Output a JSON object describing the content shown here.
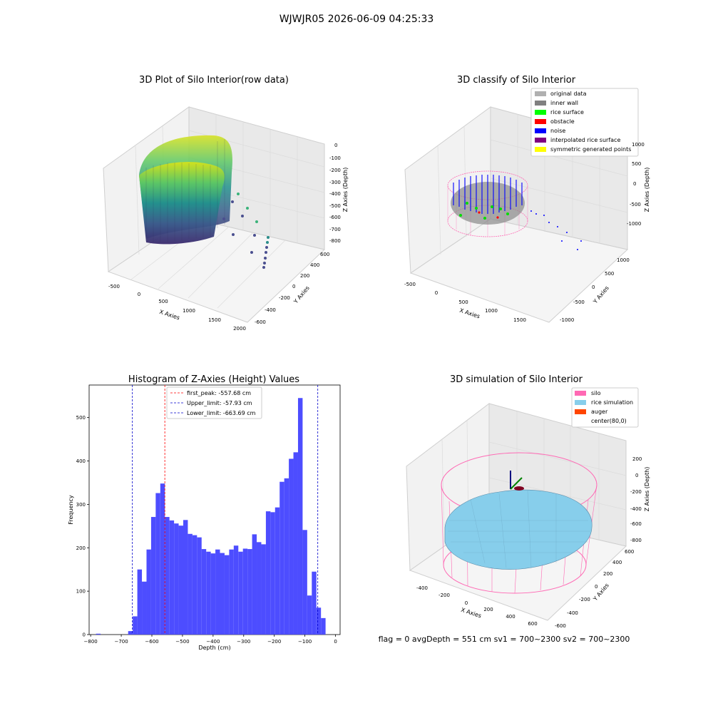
{
  "suptitle": "WJWJR05 2026-06-09 04:25:33",
  "footer": "flag = 0     avgDepth = 551 cm  sv1 = 700~2300  sv2 = 700~2300",
  "colors": {
    "hist_bar": "#4d4dff",
    "first_peak": "#ff0000",
    "limit": "#0000cc",
    "silo": "#ff69b4",
    "rice": "#87ceeb",
    "auger": "#ff4500",
    "pane": "#f0f0f0"
  },
  "chart_data": [
    {
      "type": "scatter3d",
      "title": "3D Plot of Silo Interior(row data)",
      "xlabel": "X Axies",
      "ylabel": "Y Axies",
      "zlabel": "Z Axies (Depth)",
      "xticks": [
        "-500",
        "0",
        "500",
        "1000",
        "1500",
        "2000"
      ],
      "yticks": [
        "-600",
        "-400",
        "-200",
        "0",
        "200",
        "400",
        "600"
      ],
      "zticks": [
        "0",
        "-100",
        "-200",
        "-300",
        "-400",
        "-500",
        "-600",
        "-700",
        "-800"
      ],
      "colormap": "viridis",
      "grid": true
    },
    {
      "type": "scatter3d",
      "title": "3D classify of Silo Interior",
      "xticks": [
        "-500",
        "0",
        "500",
        "1000",
        "1500"
      ],
      "yticks": [
        "-1000",
        "-500",
        "0",
        "500",
        "1000"
      ],
      "zticks": [
        "1000",
        "500",
        "0",
        "-500",
        "-1000"
      ],
      "xlabel": "X Axies",
      "ylabel": "Y Axies",
      "zlabel": "Z Axies (Depth)",
      "legend_position": "top-right",
      "legend": [
        {
          "label": "original data",
          "color": "#b0b0b0"
        },
        {
          "label": "inner wall",
          "color": "#808080"
        },
        {
          "label": "rice surface",
          "color": "#00ff00"
        },
        {
          "label": "obstacle",
          "color": "#ff0000"
        },
        {
          "label": "noise",
          "color": "#0000ff"
        },
        {
          "label": "interpolated rice surface",
          "color": "#800080"
        },
        {
          "label": "symmetric generated points",
          "color": "#ffff00"
        }
      ],
      "grid": true
    },
    {
      "type": "bar",
      "title": "Histogram of Z-Axies (Height) Values",
      "xlabel": "Depth (cm)",
      "ylabel": "Frequency",
      "xlim": [
        -805,
        15
      ],
      "ylim": [
        0,
        575
      ],
      "bin_width": 15,
      "bins": [
        {
          "x": -775,
          "v": 2
        },
        {
          "x": -670,
          "v": 8
        },
        {
          "x": -655,
          "v": 42
        },
        {
          "x": -640,
          "v": 150
        },
        {
          "x": -625,
          "v": 122
        },
        {
          "x": -610,
          "v": 196
        },
        {
          "x": -595,
          "v": 271
        },
        {
          "x": -580,
          "v": 326
        },
        {
          "x": -565,
          "v": 348
        },
        {
          "x": -550,
          "v": 271
        },
        {
          "x": -535,
          "v": 263
        },
        {
          "x": -520,
          "v": 256
        },
        {
          "x": -505,
          "v": 251
        },
        {
          "x": -490,
          "v": 264
        },
        {
          "x": -475,
          "v": 232
        },
        {
          "x": -460,
          "v": 229
        },
        {
          "x": -445,
          "v": 224
        },
        {
          "x": -430,
          "v": 197
        },
        {
          "x": -415,
          "v": 191
        },
        {
          "x": -400,
          "v": 187
        },
        {
          "x": -385,
          "v": 196
        },
        {
          "x": -370,
          "v": 188
        },
        {
          "x": -355,
          "v": 183
        },
        {
          "x": -340,
          "v": 196
        },
        {
          "x": -325,
          "v": 205
        },
        {
          "x": -310,
          "v": 191
        },
        {
          "x": -295,
          "v": 198
        },
        {
          "x": -280,
          "v": 197
        },
        {
          "x": -265,
          "v": 231
        },
        {
          "x": -250,
          "v": 213
        },
        {
          "x": -235,
          "v": 208
        },
        {
          "x": -220,
          "v": 284
        },
        {
          "x": -205,
          "v": 282
        },
        {
          "x": -190,
          "v": 293
        },
        {
          "x": -175,
          "v": 352
        },
        {
          "x": -160,
          "v": 360
        },
        {
          "x": -145,
          "v": 405
        },
        {
          "x": -130,
          "v": 420
        },
        {
          "x": -115,
          "v": 545
        },
        {
          "x": -100,
          "v": 241
        },
        {
          "x": -85,
          "v": 90
        },
        {
          "x": -70,
          "v": 145
        },
        {
          "x": -55,
          "v": 62
        },
        {
          "x": -40,
          "v": 38
        }
      ],
      "xticks": [
        -800,
        -700,
        -600,
        -500,
        -400,
        -300,
        -200,
        -100,
        0
      ],
      "xtick_labels": [
        "−800",
        "−700",
        "−600",
        "−500",
        "−400",
        "−300",
        "−200",
        "−100",
        "0"
      ],
      "yticks": [
        0,
        100,
        200,
        300,
        400,
        500
      ],
      "vlines": [
        {
          "x": -557.68,
          "label": "first_peak: -557.68 cm",
          "color": "#ff0000"
        },
        {
          "x": -57.93,
          "label": "Upper_limit: -57.93 cm",
          "color": "#0000cc"
        },
        {
          "x": -663.69,
          "label": "Lower_limit: -663.69 cm",
          "color": "#0000cc"
        }
      ]
    },
    {
      "type": "surface3d",
      "title": "3D simulation of Silo Interior",
      "xlabel": "X Axies",
      "ylabel": "Y Axies",
      "zlabel": "Z Axies (Depth)",
      "xticks": [
        "-400",
        "-200",
        "0",
        "200",
        "400",
        "600"
      ],
      "yticks": [
        "-600",
        "-400",
        "-200",
        "0",
        "200",
        "400",
        "600"
      ],
      "zticks": [
        "200",
        "0",
        "-200",
        "-400",
        "-600",
        "-800"
      ],
      "legend_position": "top-right",
      "legend": [
        {
          "label": "silo",
          "color": "#ff69b4"
        },
        {
          "label": "rice simulation",
          "color": "#87ceeb"
        },
        {
          "label": "auger",
          "color": "#ff4500"
        },
        {
          "label": "center(80,0)",
          "color": ""
        }
      ],
      "grid": true
    }
  ]
}
